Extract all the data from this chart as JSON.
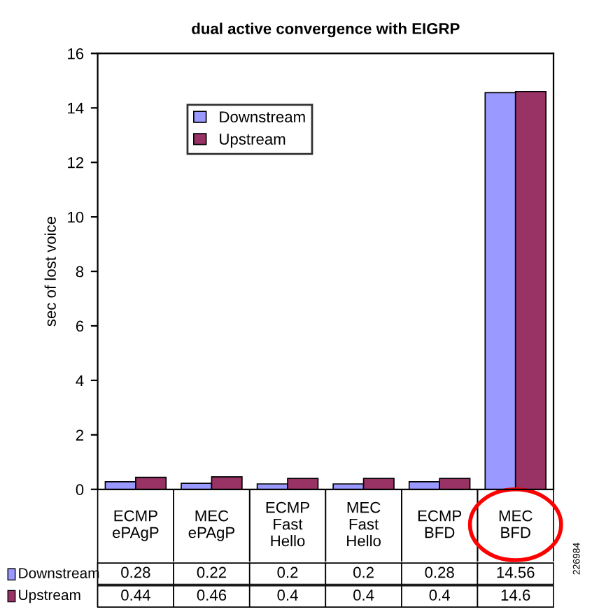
{
  "chart_data": {
    "type": "bar",
    "title": "dual active convergence with EIGRP",
    "ylabel": "sec of lost voice",
    "categories": [
      "ECMP\nePAgP",
      "MEC\nePAgP",
      "ECMP\nFast\nHello",
      "MEC\nFast\nHello",
      "ECMP\nBFD",
      "MEC\nBFD"
    ],
    "series": [
      {
        "name": "Downstream",
        "color": "#9999ff",
        "values": [
          0.28,
          0.22,
          0.2,
          0.2,
          0.28,
          14.56
        ]
      },
      {
        "name": "Upstream",
        "color": "#993366",
        "values": [
          0.44,
          0.46,
          0.4,
          0.4,
          0.4,
          14.6
        ]
      }
    ],
    "ylim": [
      0,
      16
    ],
    "yticks": [
      0,
      2,
      4,
      6,
      8,
      10,
      12,
      14,
      16
    ],
    "data_labels": true,
    "legend": "top left",
    "grid": false,
    "annotations": [
      "226984"
    ]
  }
}
